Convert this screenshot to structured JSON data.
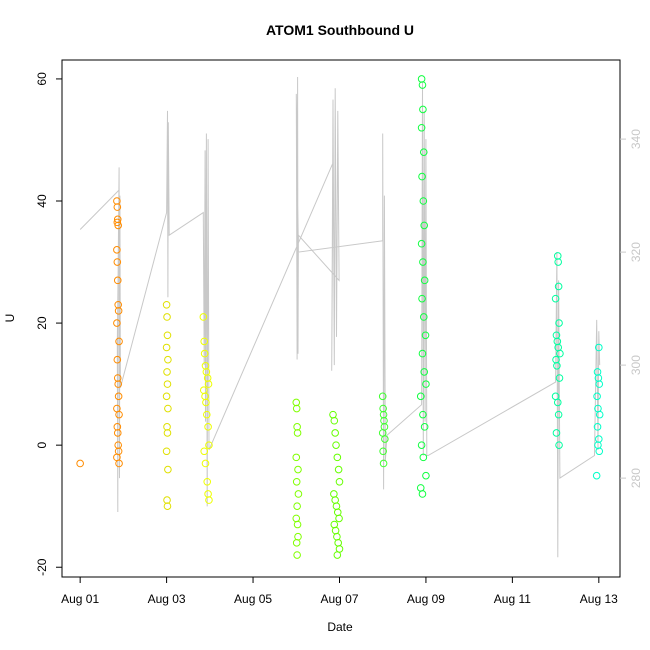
{
  "chart_data": {
    "type": "scatter",
    "title": "ATOM1 Southbound U",
    "xlabel": "Date",
    "ylabel": "U",
    "xlim": [
      0.58,
      13.49
    ],
    "xticks": [
      {
        "value": 1,
        "label": "Aug 01"
      },
      {
        "value": 3,
        "label": "Aug 03"
      },
      {
        "value": 5,
        "label": "Aug 05"
      },
      {
        "value": 7,
        "label": "Aug 07"
      },
      {
        "value": 9,
        "label": "Aug 09"
      },
      {
        "value": 11,
        "label": "Aug 11"
      },
      {
        "value": 13,
        "label": "Aug 13"
      }
    ],
    "ylim": [
      -21.6,
      63.1
    ],
    "yticks": [
      -20,
      0,
      20,
      40,
      60
    ],
    "y2lim": [
      262.5,
      354
    ],
    "y2ticks": [
      280,
      300,
      320,
      340
    ],
    "y2color": "#c8c8c8",
    "series": [
      {
        "color": "#ff8c00",
        "x": [
          1.0,
          1.85,
          1.86,
          1.87,
          1.88,
          1.85,
          1.86,
          1.87,
          1.88,
          1.89,
          1.85,
          1.9,
          1.86,
          1.87,
          1.88,
          1.89,
          1.85,
          1.9,
          1.86,
          1.87,
          1.88,
          1.89,
          1.85,
          1.9,
          1.86
        ],
        "values": [
          -3,
          40,
          39,
          37,
          36,
          32,
          30,
          27,
          23,
          22,
          20,
          17,
          14,
          11,
          10,
          8,
          6,
          5,
          3,
          2,
          0,
          -1,
          -2,
          -3,
          36.5
        ]
      },
      {
        "color": "#e0e000",
        "x": [
          3.0,
          3.01,
          3.02,
          3.0,
          3.03,
          3.01,
          3.02,
          3.0,
          3.03,
          3.01,
          3.02,
          3.0,
          3.03,
          3.01,
          3.02
        ],
        "values": [
          23,
          21,
          18,
          16,
          14,
          12,
          10,
          8,
          6,
          3,
          2,
          -1,
          -4,
          -9,
          -10
        ]
      },
      {
        "color": "#eeff00",
        "x": [
          3.85,
          3.87,
          3.88,
          3.9,
          3.92,
          3.95,
          3.97,
          3.86,
          3.89,
          3.91,
          3.93,
          3.96,
          3.98,
          3.87,
          3.9,
          3.94,
          3.96,
          3.98
        ],
        "values": [
          21,
          17,
          15,
          13,
          12,
          11,
          10,
          9,
          8,
          7,
          5,
          3,
          0,
          -1,
          -3,
          -6,
          -8,
          -9
        ]
      },
      {
        "color": "#80ff00",
        "x": [
          6.0,
          6.01,
          6.02,
          6.03,
          6.0,
          6.04,
          6.01,
          6.05,
          6.02,
          6.0,
          6.03,
          6.04,
          6.01,
          6.02
        ],
        "values": [
          7,
          6,
          3,
          2,
          -2,
          -4,
          -6,
          -8,
          -10,
          -12,
          -13,
          -15,
          -16,
          -18
        ]
      },
      {
        "color": "#66ff00",
        "x": [
          6.85,
          6.88,
          6.9,
          6.92,
          6.95,
          6.98,
          7.0,
          6.87,
          6.9,
          6.93,
          6.96,
          6.99,
          6.88,
          6.91,
          6.94,
          6.97,
          7.0,
          6.95
        ],
        "values": [
          5,
          4,
          2,
          0,
          -2,
          -4,
          -6,
          -8,
          -9,
          -10,
          -11,
          -12,
          -13,
          -14,
          -15,
          -16,
          -17,
          -18
        ]
      },
      {
        "color": "#40ff30",
        "x": [
          8.0,
          8.01,
          8.02,
          8.03,
          8.04,
          8.0,
          8.05,
          8.01,
          8.02
        ],
        "values": [
          8,
          6,
          5,
          4,
          3,
          2,
          1,
          -1,
          -3
        ]
      },
      {
        "color": "#10ff40",
        "x": [
          8.9,
          8.92,
          8.93,
          8.9,
          8.95,
          8.91,
          8.94,
          8.96,
          8.9,
          8.93,
          8.97,
          8.91,
          8.95,
          8.99,
          8.92,
          8.96,
          9.0,
          8.88,
          8.93,
          8.97,
          8.9,
          8.94,
          9.0,
          8.88,
          8.92
        ],
        "values": [
          60,
          59,
          55,
          52,
          48,
          44,
          40,
          36,
          33,
          30,
          27,
          24,
          21,
          18,
          15,
          12,
          10,
          8,
          5,
          3,
          0,
          -2,
          -5,
          -7,
          -8
        ]
      },
      {
        "color": "#00ffa0",
        "x": [
          12.05,
          12.06,
          12.07,
          12.0,
          12.08,
          12.02,
          12.04,
          12.06,
          12.1,
          12.01,
          12.03,
          12.09,
          12.0,
          12.05,
          12.07,
          12.02,
          12.08
        ],
        "values": [
          31,
          30,
          26,
          24,
          20,
          18,
          17,
          16,
          15,
          14,
          13,
          11,
          8,
          7,
          5,
          2,
          0
        ]
      },
      {
        "color": "#00ffc8",
        "x": [
          13.0,
          12.97,
          12.99,
          13.01,
          12.96,
          12.98,
          13.02,
          12.97,
          13.0,
          12.98,
          13.01,
          12.95
        ],
        "values": [
          16,
          12,
          11,
          10,
          8,
          6,
          5,
          3,
          1,
          0,
          -1,
          -5
        ]
      },
      {
        "type": "line",
        "axis": "y2",
        "color": "#c8c8c8",
        "x": [
          1.0,
          1.9,
          1.86,
          1.87,
          1.88,
          1.9,
          1.91,
          1.92,
          1.93,
          3.0,
          3.02,
          3.03,
          3.04,
          3.06,
          3.85,
          3.87,
          3.89,
          3.9,
          3.92,
          3.94,
          3.96,
          3.98,
          6.85,
          6.82,
          6.85,
          6.88,
          6.9,
          6.93,
          6.96,
          6.99,
          6.05,
          6.04,
          6.03,
          6.02,
          6.0,
          6.05,
          8.0,
          8.0,
          8.02,
          8.04,
          8.06,
          8.1,
          8.9,
          8.92,
          8.94,
          8.96,
          8.98,
          9.0,
          9.02,
          9.05,
          12.0,
          12.03,
          12.05,
          12.07,
          12.1,
          12.9,
          12.95,
          12.98,
          13.0,
          13.02
        ],
        "values": [
          324,
          331,
          304,
          274,
          318,
          335,
          280,
          330,
          296,
          327,
          345,
          312,
          343,
          323,
          327,
          300,
          338,
          290,
          341,
          275,
          340,
          285,
          335.8,
          299,
          347,
          300,
          349,
          305,
          345,
          315,
          323,
          302,
          351,
          301,
          348,
          320,
          322,
          341,
          278,
          330,
          283,
          287.6,
          293,
          350,
          284,
          345,
          290,
          340,
          284,
          284,
          297,
          320,
          266,
          315,
          280,
          284,
          308,
          285,
          306,
          300
        ]
      }
    ]
  }
}
